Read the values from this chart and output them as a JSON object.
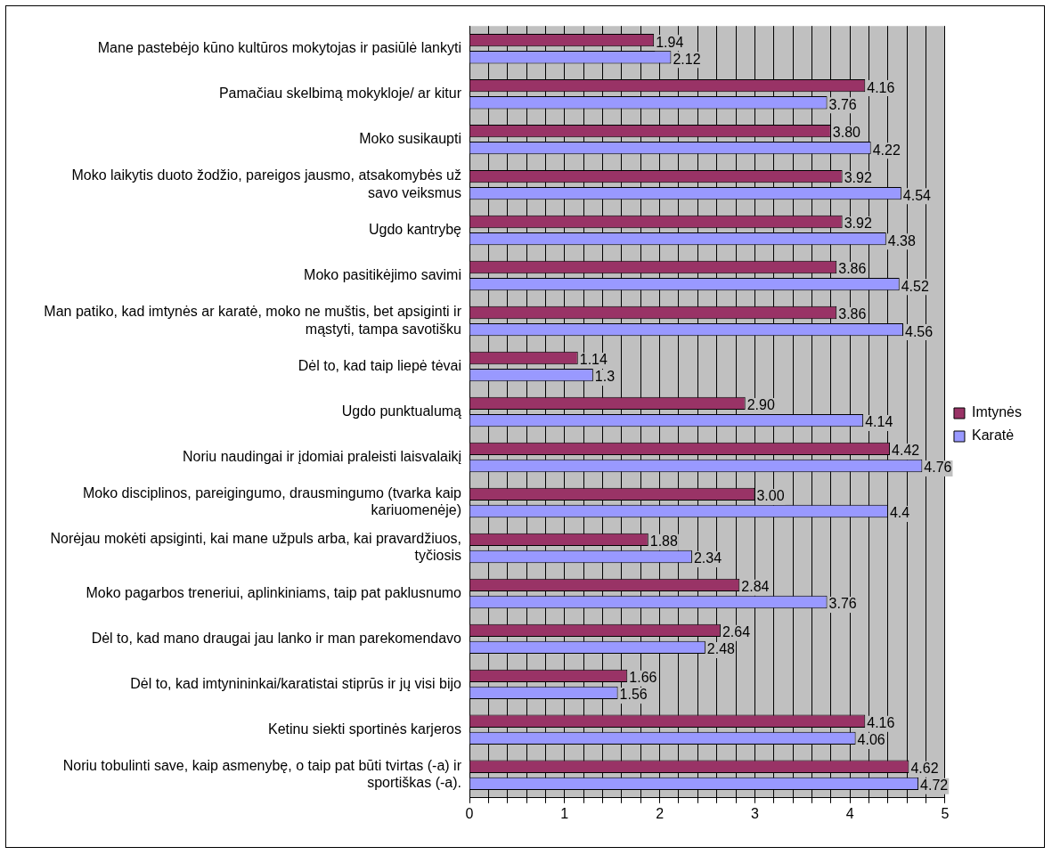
{
  "chart_data": {
    "type": "bar",
    "orientation": "horizontal",
    "categories": [
      "Mane pastebėjo kūno kultūros mokytojas ir pasiūlė lankyti",
      "Pamačiau skelbimą mokykloje/ ar kitur",
      "Moko susikaupti",
      "Moko laikytis duoto žodžio, pareigos jausmo, atsakomybės už savo veiksmus",
      "Ugdo kantrybę",
      "Moko pasitikėjimo savimi",
      "Man patiko, kad imtynės ar karatė, moko ne muštis, bet apsiginti ir mąstyti, tampa savotišku",
      "Dėl to, kad taip liepė tėvai",
      "Ugdo punktualumą",
      "Noriu naudingai ir įdomiai praleisti laisvalaikį",
      "Moko disciplinos, pareigingumo, drausmingumo (tvarka kaip kariuomenėje)",
      "Norėjau mokėti apsiginti, kai mane užpuls arba, kai pravardžiuos, tyčiosis",
      "Moko pagarbos treneriui, aplinkiniams, taip pat paklusnumo",
      "Dėl to, kad mano draugai jau lanko ir man parekomendavo",
      "Dėl to, kad imtynininkai/karatistai stiprūs ir jų visi bijo",
      "Ketinu siekti sportinės karjeros",
      "Noriu tobulinti save, kaip asmenybę, o taip pat būti tvirtas (-a) ir sportiškas (-a)."
    ],
    "series": [
      {
        "name": "Imtynės",
        "color": "#993366",
        "values": [
          1.94,
          4.16,
          3.8,
          3.92,
          3.92,
          3.86,
          3.86,
          1.14,
          2.9,
          4.42,
          3.0,
          1.88,
          2.84,
          2.64,
          1.66,
          4.16,
          4.62
        ],
        "value_labels": [
          "1.94",
          "4.16",
          "3.80",
          "3.92",
          "3.92",
          "3.86",
          "3.86",
          "1.14",
          "2.90",
          "4.42",
          "3.00",
          "1.88",
          "2.84",
          "2.64",
          "1.66",
          "4.16",
          "4.62"
        ]
      },
      {
        "name": "Karatė",
        "color": "#9999ff",
        "values": [
          2.12,
          3.76,
          4.22,
          4.54,
          4.38,
          4.52,
          4.56,
          1.3,
          4.14,
          4.76,
          4.4,
          2.34,
          3.76,
          2.48,
          1.56,
          4.06,
          4.72
        ],
        "value_labels": [
          "2.12",
          "3.76",
          "4.22",
          "4.54",
          "4.38",
          "4.52",
          "4.56",
          "1.3",
          "4.14",
          "4.76",
          "4.4",
          "2.34",
          "3.76",
          "2.48",
          "1.56",
          "4.06",
          "4.72"
        ]
      }
    ],
    "xlim": [
      0,
      5
    ],
    "xticks": [
      0,
      {
        "value": 0.2,
        "label": null
      },
      {
        "value": 0.4,
        "label": null
      },
      {
        "value": 0.6,
        "label": null
      },
      {
        "value": 0.8,
        "label": null
      },
      1,
      {
        "value": 1.2,
        "label": null
      },
      {
        "value": 1.4,
        "label": null
      },
      {
        "value": 1.6,
        "label": null
      },
      {
        "value": 1.8,
        "label": null
      },
      2,
      {
        "value": 2.2,
        "label": null
      },
      {
        "value": 2.4,
        "label": null
      },
      {
        "value": 2.6,
        "label": null
      },
      {
        "value": 2.8,
        "label": null
      },
      3,
      {
        "value": 3.2,
        "label": null
      },
      {
        "value": 3.4,
        "label": null
      },
      {
        "value": 3.6,
        "label": null
      },
      {
        "value": 3.8,
        "label": null
      },
      4,
      {
        "value": 4.2,
        "label": null
      },
      {
        "value": 4.4,
        "label": null
      },
      {
        "value": 4.6,
        "label": null
      },
      {
        "value": 4.8,
        "label": null
      },
      5
    ],
    "grid": "x",
    "legend": "right"
  }
}
